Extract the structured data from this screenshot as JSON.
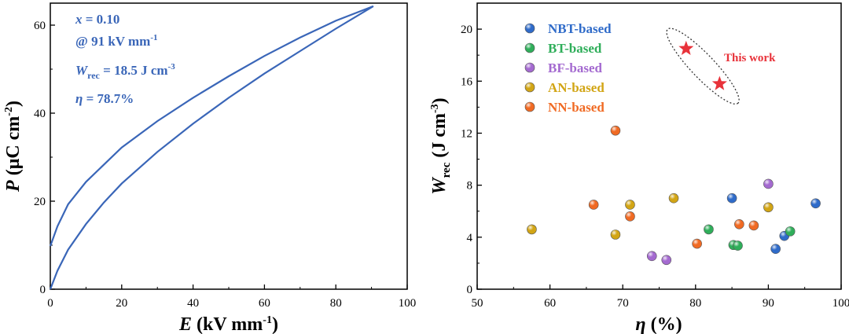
{
  "chart_data": [
    {
      "type": "line",
      "xlabel": {
        "main": "E",
        "unit_pre": " (kV mm",
        "unit_sup": "-1",
        "unit_post": ")"
      },
      "ylabel": {
        "main": "P",
        "unit_pre": " (μC cm",
        "unit_sup": "-2",
        "unit_post": ")"
      },
      "xlim": [
        0,
        100
      ],
      "ylim": [
        0,
        65
      ],
      "xticks": [
        0,
        20,
        40,
        60,
        80,
        100
      ],
      "yticks": [
        0,
        20,
        40,
        60
      ],
      "line_color": "#3a66b8",
      "annotations": {
        "x_label": "x",
        "x_value": " = 0.10",
        "field": "@ 91 kV mm",
        "field_sup": "-1",
        "w_main": "W",
        "w_sub": "rec",
        "w_value": " = 18.5 J cm",
        "w_sup": "-3",
        "eta_label": "η",
        "eta_value": " = 78.7%"
      },
      "series": [
        {
          "branch": "charge",
          "x": [
            0,
            2,
            5,
            10,
            15,
            20,
            30,
            40,
            50,
            60,
            70,
            80,
            90.5
          ],
          "y": [
            0,
            4.2,
            9.0,
            14.8,
            19.7,
            24.0,
            31.2,
            37.6,
            43.5,
            49.0,
            54.1,
            59.2,
            64.3
          ]
        },
        {
          "branch": "discharge",
          "x": [
            90.5,
            80,
            70,
            60,
            50,
            40,
            30,
            20,
            10,
            5,
            2,
            0
          ],
          "y": [
            64.3,
            61.0,
            57.2,
            53.0,
            48.4,
            43.5,
            38.2,
            32.2,
            24.4,
            19.3,
            14.3,
            9.8
          ]
        }
      ]
    },
    {
      "type": "scatter",
      "xlabel": {
        "main": "η",
        "unit": " (%)"
      },
      "ylabel": {
        "main": "W",
        "sub": "rec",
        "unit_pre": " (J cm",
        "unit_sup": "-3",
        "unit_post": ")"
      },
      "xlim": [
        50,
        100
      ],
      "ylim": [
        0,
        22
      ],
      "xticks": [
        50,
        60,
        70,
        80,
        90,
        100
      ],
      "yticks": [
        0,
        4,
        8,
        12,
        16,
        20
      ],
      "legend_position": "top-left",
      "series": [
        {
          "name": "NBT-based",
          "color": "#2f6bc9",
          "points": [
            [
              85,
              7.0
            ],
            [
              91,
              3.1
            ],
            [
              92.2,
              4.1
            ],
            [
              96.5,
              6.6
            ]
          ]
        },
        {
          "name": "BT-based",
          "color": "#2fae5a",
          "points": [
            [
              81.8,
              4.6
            ],
            [
              85.2,
              3.4
            ],
            [
              85.8,
              3.35
            ],
            [
              93,
              4.45
            ]
          ]
        },
        {
          "name": "BF-based",
          "color": "#a46ad0",
          "points": [
            [
              74,
              2.55
            ],
            [
              76,
              2.25
            ],
            [
              90,
              8.1
            ]
          ]
        },
        {
          "name": "AN-based",
          "color": "#d2a515",
          "points": [
            [
              57.5,
              4.6
            ],
            [
              69,
              4.2
            ],
            [
              71,
              6.5
            ],
            [
              77,
              7.0
            ],
            [
              90,
              6.3
            ]
          ]
        },
        {
          "name": "NN-based",
          "color": "#f06a23",
          "points": [
            [
              66,
              6.5
            ],
            [
              69,
              12.2
            ],
            [
              71,
              5.6
            ],
            [
              80.2,
              3.5
            ],
            [
              86,
              5.0
            ],
            [
              88,
              4.9
            ]
          ]
        }
      ],
      "this_work": {
        "label": "This work",
        "color": "#e8323a",
        "points": [
          [
            78.7,
            18.5
          ],
          [
            83.3,
            15.8
          ]
        ]
      }
    }
  ]
}
